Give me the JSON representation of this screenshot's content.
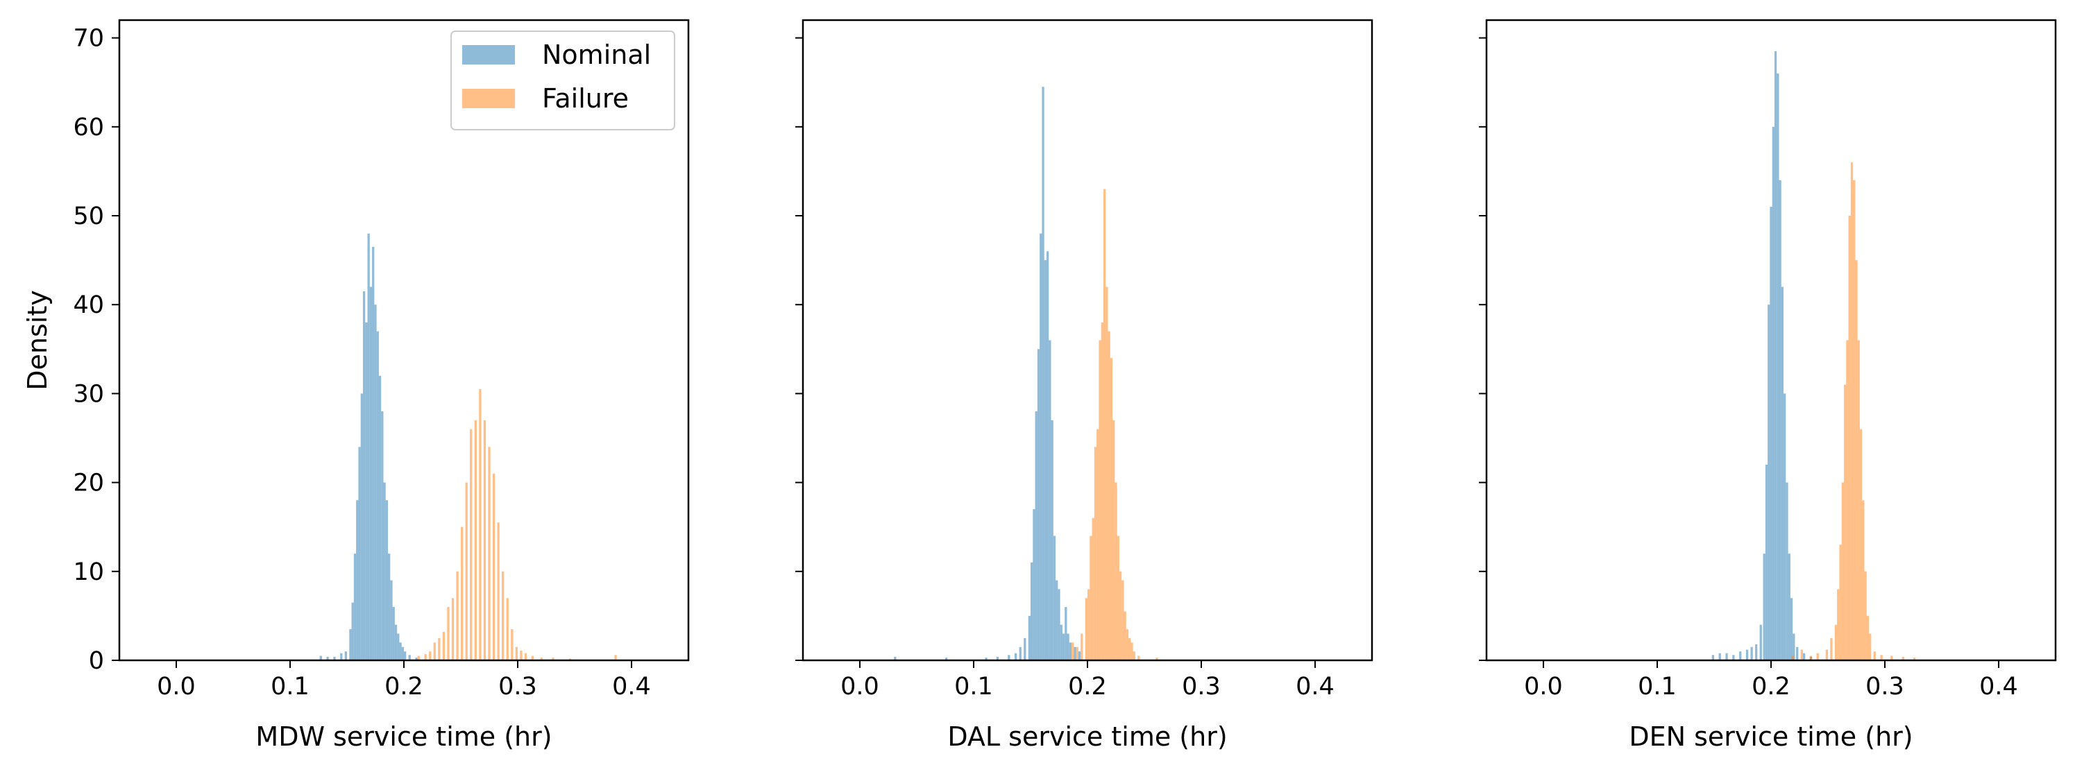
{
  "chart_data": [
    {
      "type": "histogram",
      "xlabel": "MDW service time (hr)",
      "ylabel": "Density",
      "xlim": [
        -0.05,
        0.45
      ],
      "ylim": [
        0,
        72
      ],
      "xticks": [
        "0.0",
        "0.1",
        "0.2",
        "0.3",
        "0.4"
      ],
      "yticks": [
        "0",
        "10",
        "20",
        "30",
        "40",
        "50",
        "60",
        "70"
      ],
      "show_yticklabels": true,
      "legend": {
        "position": "upper right",
        "entries": [
          "Nominal",
          "Failure"
        ]
      },
      "series": [
        {
          "name": "Nominal",
          "color": "#1f77b4",
          "alpha": 0.5,
          "bins": [
            [
              0.126,
              0.5
            ],
            [
              0.132,
              0.4
            ],
            [
              0.138,
              0.4
            ],
            [
              0.144,
              0.8
            ],
            [
              0.148,
              1.0
            ],
            [
              0.152,
              3.5
            ],
            [
              0.154,
              6.5
            ],
            [
              0.156,
              12
            ],
            [
              0.158,
              18
            ],
            [
              0.16,
              24
            ],
            [
              0.162,
              30
            ],
            [
              0.164,
              41.5
            ],
            [
              0.166,
              38
            ],
            [
              0.168,
              48
            ],
            [
              0.17,
              42
            ],
            [
              0.172,
              46.5
            ],
            [
              0.174,
              40
            ],
            [
              0.176,
              37
            ],
            [
              0.178,
              32
            ],
            [
              0.18,
              28
            ],
            [
              0.182,
              20
            ],
            [
              0.184,
              18
            ],
            [
              0.186,
              12
            ],
            [
              0.188,
              9
            ],
            [
              0.19,
              6
            ],
            [
              0.192,
              4
            ],
            [
              0.194,
              3
            ],
            [
              0.196,
              2
            ],
            [
              0.198,
              1.5
            ],
            [
              0.2,
              1
            ],
            [
              0.204,
              0.6
            ],
            [
              0.21,
              0.3
            ]
          ]
        },
        {
          "name": "Failure",
          "color": "#ff7f0e",
          "alpha": 0.5,
          "bins": [
            [
              0.212,
              0.5
            ],
            [
              0.218,
              0.7
            ],
            [
              0.222,
              1
            ],
            [
              0.226,
              2
            ],
            [
              0.23,
              2.5
            ],
            [
              0.234,
              3.2
            ],
            [
              0.238,
              6
            ],
            [
              0.242,
              7
            ],
            [
              0.246,
              10
            ],
            [
              0.25,
              15
            ],
            [
              0.254,
              20
            ],
            [
              0.258,
              26
            ],
            [
              0.262,
              27
            ],
            [
              0.266,
              30.5
            ],
            [
              0.27,
              27
            ],
            [
              0.274,
              24
            ],
            [
              0.278,
              21
            ],
            [
              0.282,
              15.5
            ],
            [
              0.286,
              10
            ],
            [
              0.29,
              7
            ],
            [
              0.294,
              3.5
            ],
            [
              0.298,
              1.5
            ],
            [
              0.302,
              1.1
            ],
            [
              0.306,
              0.8
            ],
            [
              0.312,
              0.5
            ],
            [
              0.32,
              0.3
            ],
            [
              0.33,
              0.3
            ],
            [
              0.345,
              0.2
            ],
            [
              0.385,
              0.6
            ]
          ]
        }
      ]
    },
    {
      "type": "histogram",
      "xlabel": "DAL service time (hr)",
      "ylabel": "",
      "xlim": [
        -0.05,
        0.45
      ],
      "ylim": [
        0,
        72
      ],
      "xticks": [
        "0.0",
        "0.1",
        "0.2",
        "0.3",
        "0.4"
      ],
      "yticks": [],
      "show_yticklabels": false,
      "series": [
        {
          "name": "Nominal",
          "color": "#1f77b4",
          "alpha": 0.5,
          "bins": [
            [
              0.03,
              0.4
            ],
            [
              0.075,
              0.3
            ],
            [
              0.11,
              0.3
            ],
            [
              0.12,
              0.4
            ],
            [
              0.13,
              0.6
            ],
            [
              0.136,
              0.8
            ],
            [
              0.14,
              1.5
            ],
            [
              0.144,
              2.5
            ],
            [
              0.148,
              5
            ],
            [
              0.15,
              11
            ],
            [
              0.152,
              17
            ],
            [
              0.154,
              28
            ],
            [
              0.156,
              35
            ],
            [
              0.158,
              48
            ],
            [
              0.16,
              64.5
            ],
            [
              0.162,
              45
            ],
            [
              0.164,
              46
            ],
            [
              0.166,
              36
            ],
            [
              0.168,
              27
            ],
            [
              0.17,
              14
            ],
            [
              0.172,
              9
            ],
            [
              0.174,
              8
            ],
            [
              0.176,
              4
            ],
            [
              0.178,
              3
            ],
            [
              0.18,
              6
            ],
            [
              0.182,
              3
            ],
            [
              0.184,
              2
            ],
            [
              0.188,
              1.5
            ],
            [
              0.192,
              1
            ]
          ]
        },
        {
          "name": "Failure",
          "color": "#ff7f0e",
          "alpha": 0.5,
          "bins": [
            [
              0.186,
              2
            ],
            [
              0.19,
              1.5
            ],
            [
              0.194,
              3
            ],
            [
              0.198,
              7
            ],
            [
              0.2,
              8
            ],
            [
              0.202,
              14
            ],
            [
              0.204,
              16
            ],
            [
              0.206,
              24
            ],
            [
              0.208,
              26
            ],
            [
              0.21,
              36
            ],
            [
              0.212,
              38
            ],
            [
              0.214,
              53
            ],
            [
              0.216,
              42
            ],
            [
              0.218,
              37
            ],
            [
              0.22,
              34
            ],
            [
              0.222,
              27
            ],
            [
              0.224,
              20
            ],
            [
              0.226,
              14
            ],
            [
              0.228,
              10
            ],
            [
              0.23,
              9
            ],
            [
              0.232,
              5.5
            ],
            [
              0.234,
              3.5
            ],
            [
              0.236,
              2.5
            ],
            [
              0.238,
              2
            ],
            [
              0.24,
              1
            ],
            [
              0.244,
              0.5
            ],
            [
              0.26,
              0.3
            ]
          ]
        }
      ]
    },
    {
      "type": "histogram",
      "xlabel": "DEN service time (hr)",
      "ylabel": "",
      "xlim": [
        -0.05,
        0.45
      ],
      "ylim": [
        0,
        72
      ],
      "xticks": [
        "0.0",
        "0.1",
        "0.2",
        "0.3",
        "0.4"
      ],
      "yticks": [],
      "show_yticklabels": false,
      "series": [
        {
          "name": "Nominal",
          "color": "#1f77b4",
          "alpha": 0.5,
          "bins": [
            [
              0.148,
              0.6
            ],
            [
              0.154,
              0.8
            ],
            [
              0.16,
              0.8
            ],
            [
              0.166,
              0.6
            ],
            [
              0.172,
              1
            ],
            [
              0.178,
              1.2
            ],
            [
              0.182,
              1.5
            ],
            [
              0.186,
              1.8
            ],
            [
              0.19,
              4
            ],
            [
              0.193,
              12
            ],
            [
              0.195,
              22
            ],
            [
              0.197,
              40
            ],
            [
              0.199,
              51
            ],
            [
              0.201,
              60
            ],
            [
              0.203,
              68.5
            ],
            [
              0.205,
              66
            ],
            [
              0.207,
              54
            ],
            [
              0.209,
              42
            ],
            [
              0.211,
              30
            ],
            [
              0.213,
              20
            ],
            [
              0.215,
              12
            ],
            [
              0.217,
              7
            ],
            [
              0.219,
              3
            ],
            [
              0.222,
              1.5
            ],
            [
              0.228,
              0.8
            ],
            [
              0.234,
              0.4
            ]
          ]
        },
        {
          "name": "Failure",
          "color": "#ff7f0e",
          "alpha": 0.5,
          "bins": [
            [
              0.218,
              0.5
            ],
            [
              0.226,
              1.2
            ],
            [
              0.234,
              0.5
            ],
            [
              0.24,
              0.8
            ],
            [
              0.248,
              1.2
            ],
            [
              0.252,
              2.5
            ],
            [
              0.256,
              4
            ],
            [
              0.258,
              8
            ],
            [
              0.26,
              13
            ],
            [
              0.262,
              20
            ],
            [
              0.264,
              31
            ],
            [
              0.266,
              36
            ],
            [
              0.268,
              50
            ],
            [
              0.27,
              56
            ],
            [
              0.272,
              54
            ],
            [
              0.274,
              45
            ],
            [
              0.276,
              36
            ],
            [
              0.278,
              26
            ],
            [
              0.28,
              18
            ],
            [
              0.282,
              10
            ],
            [
              0.284,
              5
            ],
            [
              0.286,
              3
            ],
            [
              0.29,
              1
            ],
            [
              0.296,
              0.6
            ],
            [
              0.305,
              0.5
            ],
            [
              0.315,
              0.4
            ],
            [
              0.325,
              0.3
            ]
          ]
        }
      ]
    }
  ]
}
